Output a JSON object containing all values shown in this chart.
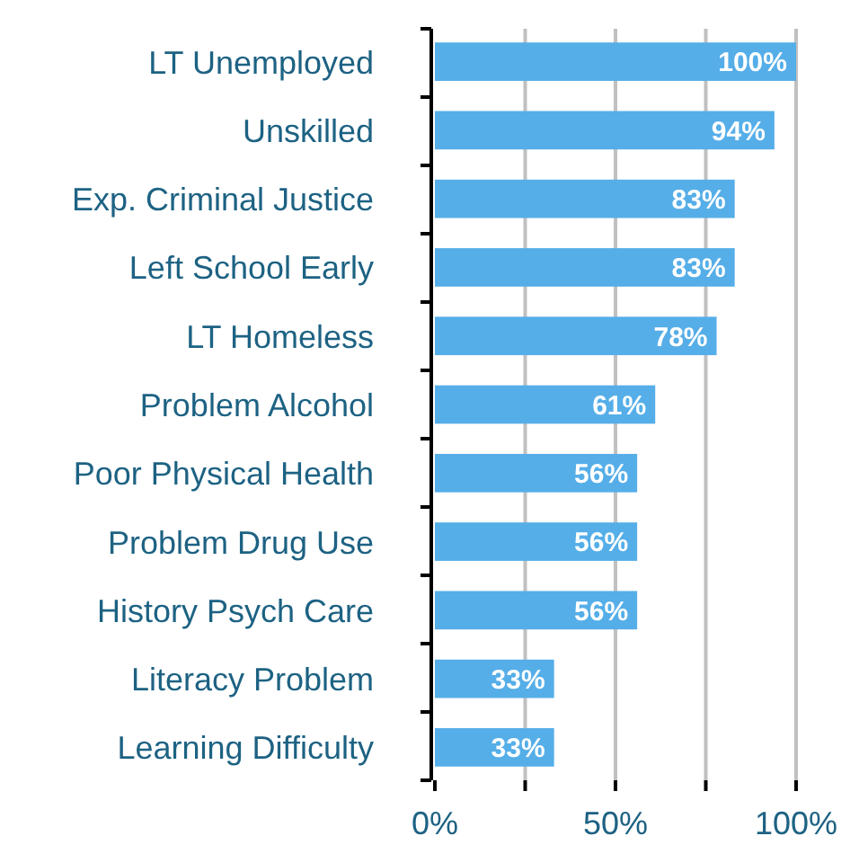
{
  "chart_data": {
    "type": "bar",
    "orientation": "horizontal",
    "categories": [
      "LT Unemployed",
      "Unskilled",
      "Exp. Criminal Justice",
      "Left School Early",
      "LT Homeless",
      "Problem Alcohol",
      "Poor Physical Health",
      "Problem Drug Use",
      "History Psych Care",
      "Literacy Problem",
      "Learning Difficulty"
    ],
    "values": [
      100,
      94,
      83,
      83,
      78,
      61,
      56,
      56,
      56,
      33,
      33
    ],
    "value_labels": [
      "100%",
      "94%",
      "83%",
      "83%",
      "78%",
      "61%",
      "56%",
      "56%",
      "56%",
      "33%",
      "33%"
    ],
    "color": "#55aee8",
    "xlim": [
      0,
      100
    ],
    "xticks": [
      {
        "value": 0,
        "label": "0%"
      },
      {
        "value": 25,
        "label": null
      },
      {
        "value": 50,
        "label": "50%"
      },
      {
        "value": 75,
        "label": null
      },
      {
        "value": 100,
        "label": "100%"
      }
    ],
    "grid": "x"
  }
}
